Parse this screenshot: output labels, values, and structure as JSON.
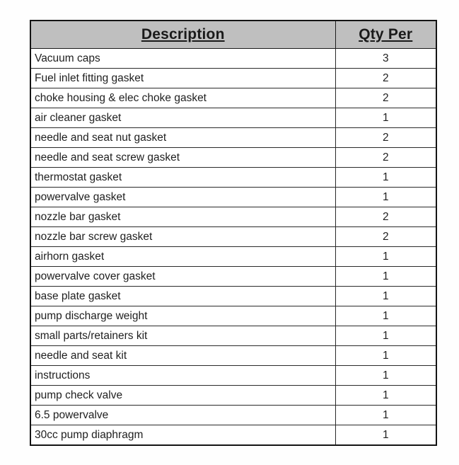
{
  "table": {
    "headers": {
      "description": "Description",
      "qty_per": "Qty Per"
    },
    "rows": [
      {
        "description": "Vacuum caps",
        "qty": "3"
      },
      {
        "description": "Fuel inlet fitting gasket",
        "qty": "2"
      },
      {
        "description": "choke housing & elec choke gasket",
        "qty": "2"
      },
      {
        "description": "air cleaner gasket",
        "qty": "1"
      },
      {
        "description": "needle and seat nut gasket",
        "qty": "2"
      },
      {
        "description": "needle and seat screw gasket",
        "qty": "2"
      },
      {
        "description": "thermostat gasket",
        "qty": "1"
      },
      {
        "description": "powervalve gasket",
        "qty": "1"
      },
      {
        "description": "nozzle bar gasket",
        "qty": "2"
      },
      {
        "description": "nozzle bar screw gasket",
        "qty": "2"
      },
      {
        "description": "airhorn gasket",
        "qty": "1"
      },
      {
        "description": "powervalve cover gasket",
        "qty": "1"
      },
      {
        "description": "base plate gasket",
        "qty": "1"
      },
      {
        "description": "pump discharge weight",
        "qty": "1"
      },
      {
        "description": "small parts/retainers kit",
        "qty": "1"
      },
      {
        "description": "needle and seat kit",
        "qty": "1"
      },
      {
        "description": "instructions",
        "qty": "1"
      },
      {
        "description": "pump check valve",
        "qty": "1"
      },
      {
        "description": "6.5 powervalve",
        "qty": "1"
      },
      {
        "description": "30cc pump diaphragm",
        "qty": "1"
      }
    ],
    "colors": {
      "header_background": "#bfbfbf",
      "border": "#141414",
      "text": "#1f1f1f"
    }
  }
}
